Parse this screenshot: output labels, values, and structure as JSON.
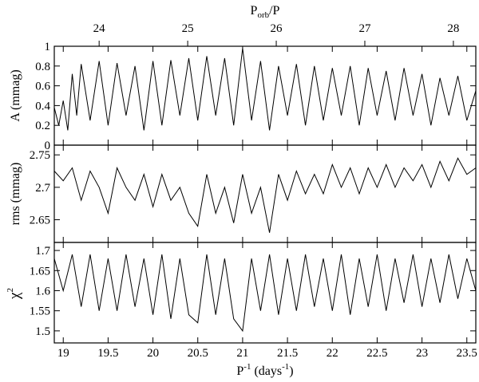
{
  "chart_data": {
    "type": "line",
    "x_axis": {
      "label_main": "P",
      "label_sup": "-1",
      "label_unit_open": " (days",
      "label_unit_sup": "-1",
      "label_unit_close": ")",
      "range": [
        18.9,
        23.6
      ],
      "ticks": [
        "19",
        "19.5",
        "20",
        "20.5",
        "21",
        "21.5",
        "22",
        "22.5",
        "23",
        "23.5"
      ]
    },
    "top_axis": {
      "label_main": "P",
      "label_sub": "orb",
      "label_rest": "/P",
      "scale": "proportional to x, 24 at x=19.40, 28 at x=23.35",
      "ticks": [
        "24",
        "25",
        "26",
        "27",
        "28"
      ]
    },
    "panels": [
      {
        "id": "A",
        "ylabel": "A (mmag)",
        "ylim": [
          0,
          1.0
        ],
        "yticks": [
          "0",
          "0.2",
          "0.4",
          "0.6",
          "0.8",
          "1"
        ],
        "series": {
          "x": [
            18.9,
            18.95,
            19.0,
            19.05,
            19.1,
            19.15,
            19.2,
            19.3,
            19.4,
            19.5,
            19.6,
            19.7,
            19.8,
            19.9,
            20.0,
            20.1,
            20.2,
            20.3,
            20.4,
            20.5,
            20.6,
            20.7,
            20.8,
            20.9,
            21.0,
            21.1,
            21.2,
            21.3,
            21.4,
            21.5,
            21.6,
            21.7,
            21.8,
            21.9,
            22.0,
            22.1,
            22.2,
            22.3,
            22.4,
            22.5,
            22.6,
            22.7,
            22.8,
            22.9,
            23.0,
            23.1,
            23.2,
            23.3,
            23.4,
            23.5,
            23.6
          ],
          "y": [
            0.38,
            0.2,
            0.45,
            0.15,
            0.72,
            0.3,
            0.82,
            0.25,
            0.85,
            0.2,
            0.83,
            0.3,
            0.8,
            0.15,
            0.85,
            0.2,
            0.86,
            0.3,
            0.88,
            0.25,
            0.9,
            0.3,
            0.88,
            0.2,
            0.98,
            0.25,
            0.85,
            0.15,
            0.8,
            0.3,
            0.82,
            0.2,
            0.8,
            0.25,
            0.78,
            0.3,
            0.8,
            0.2,
            0.78,
            0.3,
            0.75,
            0.25,
            0.78,
            0.3,
            0.72,
            0.2,
            0.68,
            0.3,
            0.7,
            0.25,
            0.55
          ]
        }
      },
      {
        "id": "rms",
        "ylabel": "rms (mmag)",
        "ylim": [
          2.615,
          2.765
        ],
        "yticks": [
          "2.65",
          "2.7",
          "2.75"
        ],
        "series": {
          "x": [
            18.9,
            19.0,
            19.1,
            19.2,
            19.3,
            19.4,
            19.5,
            19.6,
            19.7,
            19.8,
            19.9,
            20.0,
            20.1,
            20.2,
            20.3,
            20.4,
            20.5,
            20.6,
            20.7,
            20.8,
            20.9,
            21.0,
            21.1,
            21.2,
            21.3,
            21.4,
            21.5,
            21.6,
            21.7,
            21.8,
            21.9,
            22.0,
            22.1,
            22.2,
            22.3,
            22.4,
            22.5,
            22.6,
            22.7,
            22.8,
            22.9,
            23.0,
            23.1,
            23.2,
            23.3,
            23.4,
            23.5,
            23.6
          ],
          "y": [
            2.725,
            2.71,
            2.73,
            2.68,
            2.725,
            2.7,
            2.66,
            2.73,
            2.7,
            2.68,
            2.72,
            2.67,
            2.72,
            2.68,
            2.7,
            2.66,
            2.64,
            2.72,
            2.66,
            2.7,
            2.645,
            2.72,
            2.66,
            2.7,
            2.63,
            2.72,
            2.68,
            2.725,
            2.69,
            2.72,
            2.69,
            2.735,
            2.7,
            2.73,
            2.69,
            2.73,
            2.7,
            2.735,
            2.7,
            2.73,
            2.71,
            2.735,
            2.7,
            2.74,
            2.71,
            2.745,
            2.72,
            2.73
          ]
        }
      },
      {
        "id": "chi2",
        "ylabel_main": "χ",
        "ylabel_sup": "2",
        "ylim": [
          1.47,
          1.72
        ],
        "yticks": [
          "1.5",
          "1.55",
          "1.6",
          "1.65",
          "1.7"
        ],
        "series": {
          "x": [
            18.9,
            19.0,
            19.1,
            19.2,
            19.3,
            19.4,
            19.5,
            19.6,
            19.7,
            19.8,
            19.9,
            20.0,
            20.1,
            20.2,
            20.3,
            20.4,
            20.5,
            20.6,
            20.7,
            20.8,
            20.9,
            21.0,
            21.1,
            21.2,
            21.3,
            21.4,
            21.5,
            21.6,
            21.7,
            21.8,
            21.9,
            22.0,
            22.1,
            22.2,
            22.3,
            22.4,
            22.5,
            22.6,
            22.7,
            22.8,
            22.9,
            23.0,
            23.1,
            23.2,
            23.3,
            23.4,
            23.5,
            23.6
          ],
          "y": [
            1.68,
            1.6,
            1.69,
            1.56,
            1.69,
            1.55,
            1.68,
            1.55,
            1.69,
            1.56,
            1.68,
            1.54,
            1.69,
            1.53,
            1.68,
            1.54,
            1.52,
            1.69,
            1.54,
            1.68,
            1.53,
            1.5,
            1.68,
            1.55,
            1.69,
            1.54,
            1.68,
            1.55,
            1.69,
            1.56,
            1.68,
            1.55,
            1.69,
            1.54,
            1.68,
            1.56,
            1.69,
            1.55,
            1.68,
            1.57,
            1.69,
            1.56,
            1.68,
            1.57,
            1.69,
            1.58,
            1.68,
            1.6
          ]
        }
      }
    ]
  }
}
